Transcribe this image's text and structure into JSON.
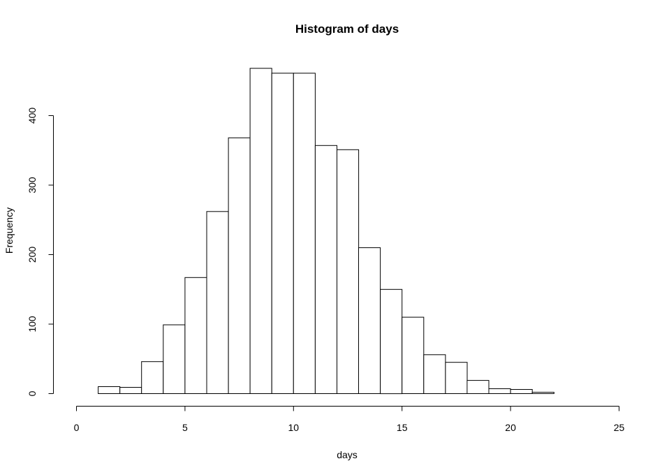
{
  "chart_data": {
    "type": "bar",
    "title": "Histogram of days",
    "xlabel": "days",
    "ylabel": "Frequency",
    "xlim": [
      0,
      25
    ],
    "ylim": [
      0,
      470
    ],
    "x_ticks": [
      0,
      5,
      10,
      15,
      20,
      25
    ],
    "y_ticks": [
      0,
      100,
      200,
      300,
      400
    ],
    "bins": [
      {
        "start": 1,
        "end": 2,
        "count": 10
      },
      {
        "start": 2,
        "end": 3,
        "count": 9
      },
      {
        "start": 3,
        "end": 4,
        "count": 46
      },
      {
        "start": 4,
        "end": 5,
        "count": 99
      },
      {
        "start": 5,
        "end": 6,
        "count": 167
      },
      {
        "start": 6,
        "end": 7,
        "count": 262
      },
      {
        "start": 7,
        "end": 8,
        "count": 368
      },
      {
        "start": 8,
        "end": 9,
        "count": 468
      },
      {
        "start": 9,
        "end": 10,
        "count": 461
      },
      {
        "start": 10,
        "end": 11,
        "count": 461
      },
      {
        "start": 11,
        "end": 12,
        "count": 357
      },
      {
        "start": 12,
        "end": 13,
        "count": 351
      },
      {
        "start": 13,
        "end": 14,
        "count": 210
      },
      {
        "start": 14,
        "end": 15,
        "count": 150
      },
      {
        "start": 15,
        "end": 16,
        "count": 110
      },
      {
        "start": 16,
        "end": 17,
        "count": 56
      },
      {
        "start": 17,
        "end": 18,
        "count": 45
      },
      {
        "start": 18,
        "end": 19,
        "count": 19
      },
      {
        "start": 19,
        "end": 20,
        "count": 7
      },
      {
        "start": 20,
        "end": 21,
        "count": 6
      },
      {
        "start": 21,
        "end": 22,
        "count": 2
      }
    ],
    "grid": false,
    "colors": {
      "bar_fill": "#ffffff",
      "bar_stroke": "#000000"
    }
  }
}
